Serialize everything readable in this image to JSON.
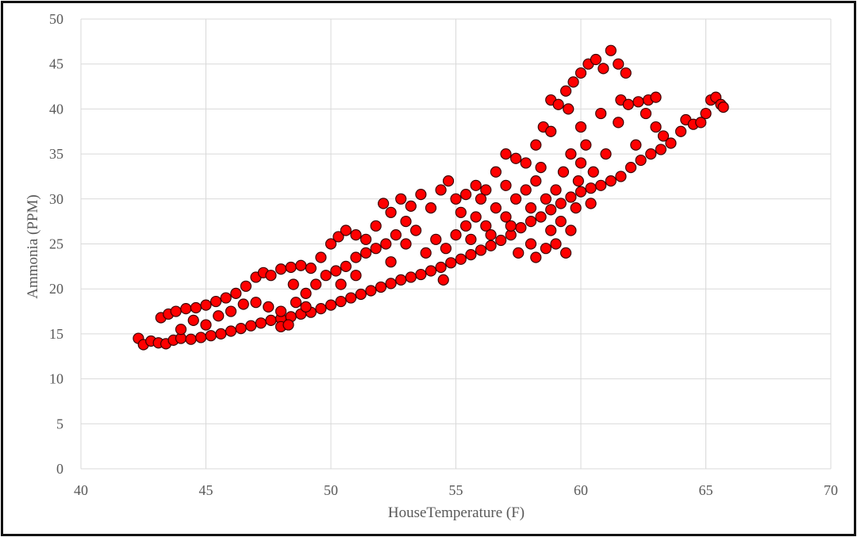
{
  "chart_data": {
    "type": "scatter",
    "title": "",
    "xlabel": "HouseTemperature (F)",
    "ylabel": "Ammonia (PPM)",
    "xlim": [
      40,
      70
    ],
    "ylim": [
      0,
      50
    ],
    "xticks": [
      40,
      45,
      50,
      55,
      60,
      65,
      70
    ],
    "yticks": [
      0,
      5,
      10,
      15,
      20,
      25,
      30,
      35,
      40,
      45,
      50
    ],
    "grid": true,
    "legend": "none",
    "marker_fill": "#ff0000",
    "marker_edge": "#3a0000",
    "points": [
      [
        42.3,
        14.5
      ],
      [
        42.5,
        13.8
      ],
      [
        42.8,
        14.2
      ],
      [
        43.1,
        14.0
      ],
      [
        43.4,
        13.9
      ],
      [
        43.7,
        14.3
      ],
      [
        44,
        14.5
      ],
      [
        44.4,
        14.4
      ],
      [
        44.8,
        14.6
      ],
      [
        45.2,
        14.8
      ],
      [
        45.6,
        15.0
      ],
      [
        46,
        15.3
      ],
      [
        46.4,
        15.6
      ],
      [
        46.8,
        15.9
      ],
      [
        47.2,
        16.2
      ],
      [
        47.6,
        16.5
      ],
      [
        48,
        16.7
      ],
      [
        48.4,
        16.9
      ],
      [
        48.8,
        17.2
      ],
      [
        49.2,
        17.4
      ],
      [
        49.6,
        17.8
      ],
      [
        50,
        18.2
      ],
      [
        50.4,
        18.6
      ],
      [
        50.8,
        19
      ],
      [
        51.2,
        19.4
      ],
      [
        51.6,
        19.8
      ],
      [
        52,
        20.2
      ],
      [
        52.4,
        20.6
      ],
      [
        52.8,
        21
      ],
      [
        53.2,
        21.3
      ],
      [
        53.6,
        21.6
      ],
      [
        54,
        22
      ],
      [
        54.4,
        22.4
      ],
      [
        54.8,
        22.9
      ],
      [
        55.2,
        23.3
      ],
      [
        55.6,
        23.8
      ],
      [
        56,
        24.3
      ],
      [
        56.4,
        24.8
      ],
      [
        56.8,
        25.4
      ],
      [
        57.2,
        26
      ],
      [
        57.6,
        26.8
      ],
      [
        58,
        27.5
      ],
      [
        58.4,
        28
      ],
      [
        58.8,
        28.8
      ],
      [
        59.2,
        29.5
      ],
      [
        59.6,
        30.2
      ],
      [
        60,
        30.8
      ],
      [
        60.4,
        31.2
      ],
      [
        60.8,
        31.5
      ],
      [
        61.2,
        32
      ],
      [
        61.6,
        32.5
      ],
      [
        62,
        33.5
      ],
      [
        62.4,
        34.3
      ],
      [
        62.8,
        35
      ],
      [
        63.2,
        35.5
      ],
      [
        63.6,
        36.2
      ],
      [
        64,
        37.5
      ],
      [
        64.2,
        38.8
      ],
      [
        64.5,
        38.3
      ],
      [
        64.8,
        38.5
      ],
      [
        65,
        39.5
      ],
      [
        65.2,
        41
      ],
      [
        65.4,
        41.3
      ],
      [
        65.6,
        40.5
      ],
      [
        65.7,
        40.2
      ],
      [
        43.2,
        16.8
      ],
      [
        43.5,
        17.2
      ],
      [
        43.8,
        17.5
      ],
      [
        44.2,
        17.8
      ],
      [
        44.6,
        17.9
      ],
      [
        45,
        18.2
      ],
      [
        45.4,
        18.6
      ],
      [
        45.8,
        19
      ],
      [
        46.2,
        19.5
      ],
      [
        46.6,
        20.3
      ],
      [
        47,
        21.3
      ],
      [
        47.3,
        21.8
      ],
      [
        47.6,
        21.5
      ],
      [
        48,
        22.2
      ],
      [
        48.4,
        22.4
      ],
      [
        48.8,
        22.6
      ],
      [
        49.2,
        22.3
      ],
      [
        49.6,
        23.5
      ],
      [
        50,
        25
      ],
      [
        50.3,
        25.8
      ],
      [
        50.6,
        26.5
      ],
      [
        51,
        26
      ],
      [
        51.4,
        25.5
      ],
      [
        51.8,
        27
      ],
      [
        52.1,
        29.5
      ],
      [
        52.4,
        28.5
      ],
      [
        52.8,
        30
      ],
      [
        53.2,
        29.2
      ],
      [
        53.6,
        30.5
      ],
      [
        54,
        29
      ],
      [
        54.4,
        31
      ],
      [
        54.7,
        32
      ],
      [
        55,
        30
      ],
      [
        55.4,
        30.5
      ],
      [
        55.8,
        31.5
      ],
      [
        56.2,
        31
      ],
      [
        56.6,
        33
      ],
      [
        57,
        35
      ],
      [
        57.4,
        34.5
      ],
      [
        57.8,
        34
      ],
      [
        58.2,
        36
      ],
      [
        58.5,
        38
      ],
      [
        58.8,
        41
      ],
      [
        59.1,
        40.5
      ],
      [
        59.4,
        42
      ],
      [
        59.7,
        43
      ],
      [
        60,
        44
      ],
      [
        60.3,
        45
      ],
      [
        60.6,
        45.5
      ],
      [
        60.9,
        44.5
      ],
      [
        61.2,
        46.5
      ],
      [
        61.5,
        45
      ],
      [
        61.8,
        44
      ],
      [
        61.6,
        41
      ],
      [
        61.9,
        40.5
      ],
      [
        62.3,
        40.8
      ],
      [
        62.7,
        41
      ],
      [
        63,
        41.3
      ],
      [
        62.6,
        39.5
      ],
      [
        63,
        38
      ],
      [
        63.3,
        37
      ],
      [
        62.2,
        36
      ],
      [
        61.5,
        38.5
      ],
      [
        60.8,
        39.5
      ],
      [
        60,
        38
      ],
      [
        59.5,
        40
      ],
      [
        58.8,
        37.5
      ],
      [
        44,
        15.5
      ],
      [
        44.5,
        16.5
      ],
      [
        45,
        16
      ],
      [
        45.5,
        17
      ],
      [
        46,
        17.5
      ],
      [
        46.5,
        18.3
      ],
      [
        47,
        18.5
      ],
      [
        47.5,
        18
      ],
      [
        48,
        17.5
      ],
      [
        48,
        15.8
      ],
      [
        48.3,
        16
      ],
      [
        48.6,
        18.5
      ],
      [
        49,
        19.5
      ],
      [
        49.4,
        20.5
      ],
      [
        49.8,
        21.5
      ],
      [
        50.2,
        22
      ],
      [
        50.6,
        22.5
      ],
      [
        51,
        23.5
      ],
      [
        51.4,
        24
      ],
      [
        51.8,
        24.5
      ],
      [
        52.2,
        25
      ],
      [
        52.6,
        26
      ],
      [
        53,
        25
      ],
      [
        53.4,
        26.5
      ],
      [
        53.8,
        24
      ],
      [
        54.2,
        25.5
      ],
      [
        54.6,
        24.5
      ],
      [
        55,
        26
      ],
      [
        54.5,
        21
      ],
      [
        55.4,
        27
      ],
      [
        55.8,
        28
      ],
      [
        56.2,
        27
      ],
      [
        56.6,
        29
      ],
      [
        57,
        28
      ],
      [
        57.4,
        30
      ],
      [
        57.8,
        31
      ],
      [
        58.2,
        32
      ],
      [
        57.5,
        24
      ],
      [
        58,
        25
      ],
      [
        58.2,
        23.5
      ],
      [
        58.6,
        24.5
      ],
      [
        59,
        25
      ],
      [
        59.4,
        24
      ],
      [
        59.6,
        26.5
      ],
      [
        59.8,
        29
      ],
      [
        59.3,
        33
      ],
      [
        59.6,
        35
      ],
      [
        60,
        34
      ],
      [
        60.2,
        36
      ],
      [
        59,
        31
      ],
      [
        58.6,
        30
      ],
      [
        58,
        29
      ],
      [
        57.2,
        27
      ],
      [
        56.4,
        26
      ],
      [
        55.6,
        25.5
      ],
      [
        53,
        27.5
      ],
      [
        52.4,
        23
      ],
      [
        51,
        21.5
      ],
      [
        50.4,
        20.5
      ],
      [
        49,
        18
      ],
      [
        48.5,
        20.5
      ],
      [
        56,
        30
      ],
      [
        58.4,
        33.5
      ],
      [
        59.9,
        32
      ],
      [
        60.5,
        33
      ],
      [
        61,
        35
      ],
      [
        60.4,
        29.5
      ],
      [
        59.2,
        27.5
      ],
      [
        58.8,
        26.5
      ],
      [
        57,
        31.5
      ],
      [
        55.2,
        28.5
      ]
    ]
  }
}
